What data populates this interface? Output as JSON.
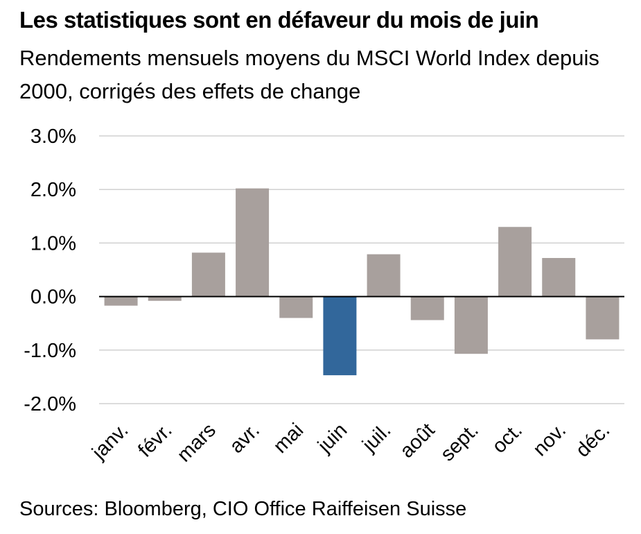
{
  "chart_data": {
    "type": "bar",
    "title": "Les statistiques sont en défaveur du mois de juin",
    "subtitle": "Rendements mensuels moyens du MSCI World Index depuis 2000, corrigés des effets de change",
    "categories": [
      "janv.",
      "févr.",
      "mars",
      "avr.",
      "mai",
      "juin",
      "juil.",
      "août",
      "sept.",
      "oct.",
      "nov.",
      "déc."
    ],
    "values": [
      -0.17,
      -0.08,
      0.82,
      2.02,
      -0.4,
      -1.47,
      0.79,
      -0.44,
      -1.07,
      1.3,
      0.72,
      -0.8
    ],
    "ylim": [
      -2.0,
      3.0
    ],
    "yticks": [
      "3.0%",
      "2.0%",
      "1.0%",
      "0.0%",
      "-1.0%",
      "-2.0%"
    ],
    "ytick_values": [
      3.0,
      2.0,
      1.0,
      0.0,
      -1.0,
      -2.0
    ],
    "highlight": "juin",
    "colors": {
      "bar": "#a8a09d",
      "highlight": "#32679b",
      "grid": "#d0d0d0",
      "zero_line": "#000000"
    },
    "grid": true,
    "legend": "none"
  },
  "source": "Sources: Bloomberg, CIO Office Raiffeisen Suisse"
}
